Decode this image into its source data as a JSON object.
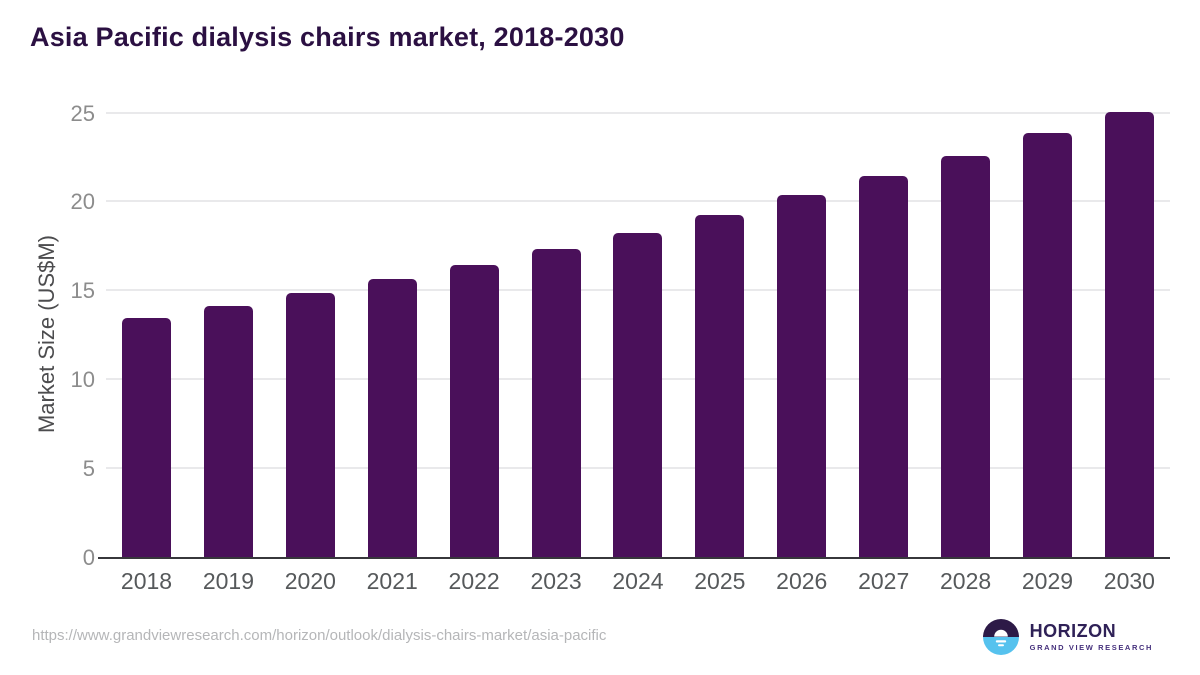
{
  "chart_data": {
    "type": "bar",
    "title": "Asia Pacific dialysis chairs market, 2018-2030",
    "categories": [
      "2018",
      "2019",
      "2020",
      "2021",
      "2022",
      "2023",
      "2024",
      "2025",
      "2026",
      "2027",
      "2028",
      "2029",
      "2030"
    ],
    "values": [
      13.5,
      14.2,
      14.9,
      15.7,
      16.5,
      17.4,
      18.3,
      19.3,
      20.4,
      21.5,
      22.6,
      23.9,
      25.1
    ],
    "xlabel": "",
    "ylabel": "Market Size (US$M)",
    "ylim": [
      0,
      25
    ],
    "yticks": [
      0,
      5,
      10,
      15,
      20,
      25
    ],
    "grid": "horizontal",
    "legend": "none",
    "bar_color": "#4A105A"
  },
  "footer": {
    "source_url": "https://www.grandviewresearch.com/horizon/outlook/dialysis-chairs-market/asia-pacific",
    "logo": {
      "name": "HORIZON",
      "subtitle": "GRAND VIEW RESEARCH",
      "colors": {
        "top": "#2D1A47",
        "bottom": "#56C2EE",
        "sun": "#FFFFFF"
      }
    }
  }
}
